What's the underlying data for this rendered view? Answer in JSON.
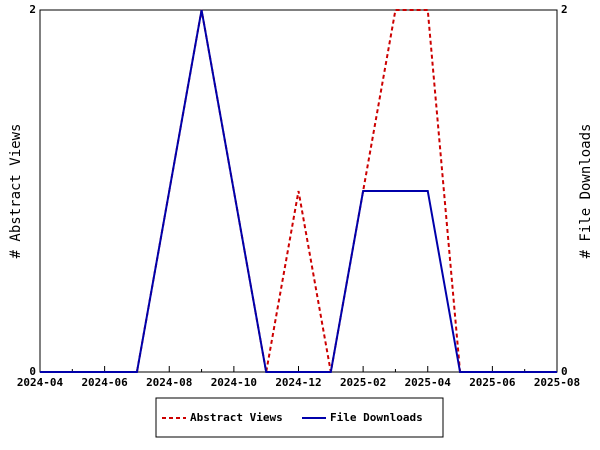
{
  "chart_data": {
    "type": "line",
    "categories": [
      "2024-04",
      null,
      "2024-06",
      null,
      "2024-08",
      null,
      "2024-10",
      null,
      "2024-12",
      null,
      "2025-02",
      null,
      "2025-04",
      null,
      "2025-06",
      null,
      "2025-08"
    ],
    "series": [
      {
        "name": "Abstract Views",
        "color": "#cc0000",
        "dash": true,
        "values": [
          0,
          0,
          0,
          0,
          1,
          2,
          1,
          0,
          1,
          0,
          1,
          2,
          2,
          0,
          0,
          0,
          0
        ]
      },
      {
        "name": "File Downloads",
        "color": "#0000aa",
        "axis": "y2",
        "values": [
          0,
          0,
          0,
          0,
          1,
          2,
          1,
          0,
          0,
          0,
          1,
          1,
          1,
          0,
          0,
          0,
          0
        ]
      }
    ],
    "ylabel": "# Abstract Views",
    "y2label": "# File Downloads",
    "ylim": [
      0,
      2
    ],
    "yticks": [
      0,
      2
    ],
    "y2lim": [
      0,
      2
    ],
    "y2ticks": [
      0,
      2
    ],
    "grid": false,
    "legend": "bottom"
  }
}
